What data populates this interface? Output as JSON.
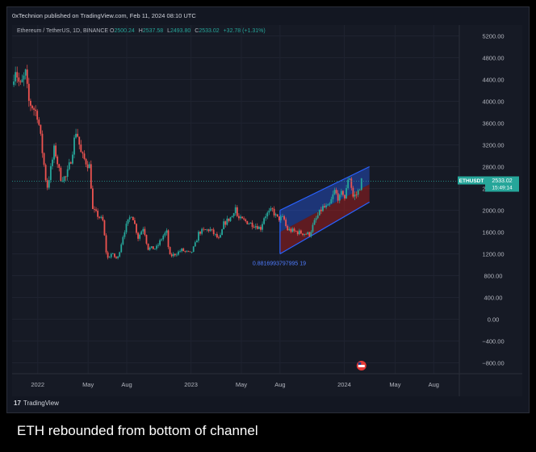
{
  "header": {
    "publisher": "0xTechnion published on TradingView.com, Feb 11, 2024 08:10 UTC"
  },
  "legend": {
    "symbol": "Ethereum / TetherUS, 1D, BINANCE",
    "open_label": "O",
    "open": "2500.24",
    "high_label": "H",
    "high": "2537.58",
    "low_label": "L",
    "low": "2493.80",
    "close_label": "C",
    "close": "2533.02",
    "change": "+32.78 (+1.31%)"
  },
  "price_tag": {
    "symbol": "ETHUSDT",
    "price": "2533.02",
    "countdown": "15:49:14"
  },
  "footer": {
    "brand": "TradingView"
  },
  "caption": "ETH rebounded from bottom of channel",
  "colors": {
    "up": "#26a69a",
    "down": "#ef5350",
    "channel_blue": "#2962ff",
    "channel_red": "#b71c1c",
    "background": "#161a25",
    "axis_text": "#b2b5be"
  },
  "chart_data": {
    "type": "candlestick",
    "symbol": "ETHUSDT",
    "ylim": [
      -1000,
      5400
    ],
    "y_ticks": [
      5200,
      4800,
      4400,
      4000,
      3600,
      3200,
      2800,
      2400,
      2000,
      1600,
      1200,
      800,
      400,
      0,
      -400,
      -800
    ],
    "y_tick_labels": [
      "5200.00",
      "4800.00",
      "4400.00",
      "4000.00",
      "3600.00",
      "3200.00",
      "2800.00",
      "2400.00",
      "2000.00",
      "1600.00",
      "1200.00",
      "800.00",
      "400.00",
      "0.00",
      "−400.00",
      "−800.00"
    ],
    "xlim": [
      "2021-11-01",
      "2024-10-01"
    ],
    "x_ticks": [
      {
        "date": "2022-01-01",
        "label": "2022"
      },
      {
        "date": "2022-05-01",
        "label": "May"
      },
      {
        "date": "2022-08-01",
        "label": "Aug"
      },
      {
        "date": "2023-01-01",
        "label": "2023"
      },
      {
        "date": "2023-05-01",
        "label": "May"
      },
      {
        "date": "2023-08-01",
        "label": "Aug"
      },
      {
        "date": "2024-01-01",
        "label": "2024"
      },
      {
        "date": "2024-05-01",
        "label": "May"
      },
      {
        "date": "2024-08-01",
        "label": "Aug"
      }
    ],
    "price_path": [
      [
        "2021-11-01",
        4300
      ],
      [
        "2021-11-08",
        4650
      ],
      [
        "2021-11-20",
        4250
      ],
      [
        "2021-12-03",
        4500
      ],
      [
        "2021-12-10",
        4000
      ],
      [
        "2021-12-20",
        3900
      ],
      [
        "2022-01-01",
        3750
      ],
      [
        "2022-01-10",
        3200
      ],
      [
        "2022-01-23",
        2400
      ],
      [
        "2022-02-01",
        2750
      ],
      [
        "2022-02-10",
        3150
      ],
      [
        "2022-02-24",
        2600
      ],
      [
        "2022-03-10",
        2600
      ],
      [
        "2022-03-20",
        2900
      ],
      [
        "2022-04-03",
        3500
      ],
      [
        "2022-04-15",
        3000
      ],
      [
        "2022-05-05",
        2800
      ],
      [
        "2022-05-12",
        2000
      ],
      [
        "2022-05-25",
        1900
      ],
      [
        "2022-06-05",
        1800
      ],
      [
        "2022-06-15",
        1100
      ],
      [
        "2022-06-25",
        1200
      ],
      [
        "2022-07-10",
        1100
      ],
      [
        "2022-07-25",
        1600
      ],
      [
        "2022-08-13",
        1950
      ],
      [
        "2022-08-28",
        1500
      ],
      [
        "2022-09-10",
        1700
      ],
      [
        "2022-09-20",
        1300
      ],
      [
        "2022-10-10",
        1300
      ],
      [
        "2022-10-28",
        1550
      ],
      [
        "2022-11-05",
        1600
      ],
      [
        "2022-11-10",
        1150
      ],
      [
        "2022-11-25",
        1200
      ],
      [
        "2022-12-10",
        1270
      ],
      [
        "2022-12-31",
        1200
      ],
      [
        "2023-01-10",
        1350
      ],
      [
        "2023-01-20",
        1600
      ],
      [
        "2023-02-15",
        1650
      ],
      [
        "2023-03-10",
        1450
      ],
      [
        "2023-03-20",
        1750
      ],
      [
        "2023-04-10",
        1900
      ],
      [
        "2023-04-16",
        2100
      ],
      [
        "2023-04-22",
        1850
      ],
      [
        "2023-05-10",
        1800
      ],
      [
        "2023-06-10",
        1700
      ],
      [
        "2023-06-15",
        1650
      ],
      [
        "2023-06-25",
        1900
      ],
      [
        "2023-07-14",
        2000
      ],
      [
        "2023-07-25",
        1850
      ],
      [
        "2023-08-10",
        1850
      ],
      [
        "2023-08-17",
        1650
      ],
      [
        "2023-09-10",
        1600
      ],
      [
        "2023-09-25",
        1580
      ],
      [
        "2023-10-10",
        1560
      ],
      [
        "2023-10-23",
        1800
      ],
      [
        "2023-11-10",
        2050
      ],
      [
        "2023-11-25",
        2050
      ],
      [
        "2023-12-09",
        2350
      ],
      [
        "2023-12-20",
        2200
      ],
      [
        "2023-12-28",
        2350
      ],
      [
        "2024-01-03",
        2200
      ],
      [
        "2024-01-12",
        2700
      ],
      [
        "2024-01-22",
        2250
      ],
      [
        "2024-02-01",
        2300
      ],
      [
        "2024-02-11",
        2533
      ]
    ],
    "channel": {
      "upper": [
        [
          "2023-08-01",
          2000
        ],
        [
          "2024-03-01",
          2800
        ]
      ],
      "lower": [
        [
          "2023-08-01",
          1200
        ],
        [
          "2024-03-01",
          2150
        ]
      ],
      "midline": [
        [
          "2023-08-01",
          1600
        ],
        [
          "2024-03-01",
          2475
        ]
      ],
      "label": "0.8816993797995 19"
    },
    "last": {
      "price": 2533.02
    }
  }
}
